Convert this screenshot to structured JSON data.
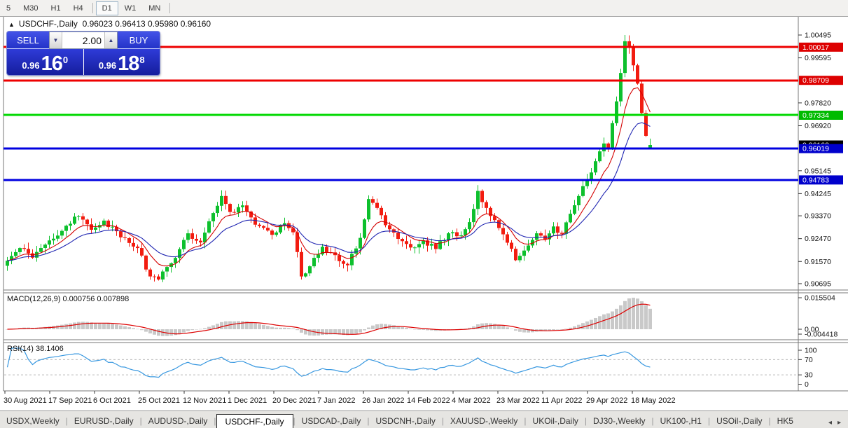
{
  "toolbar": {
    "timeframes": [
      {
        "label": "5"
      },
      {
        "label": "M30"
      },
      {
        "label": "H1"
      },
      {
        "label": "H4"
      },
      {
        "label": "D1"
      },
      {
        "label": "W1"
      },
      {
        "label": "MN"
      }
    ],
    "active_timeframe": "D1"
  },
  "chart_title": {
    "symbol": "USDCHF-,Daily",
    "ohlc": "0.96023 0.96413 0.95980 0.96160"
  },
  "trade_panel": {
    "sell_label": "SELL",
    "buy_label": "BUY",
    "lot_size": "2.00",
    "bid": {
      "small": "0.96",
      "big": "16",
      "sup": "0"
    },
    "ask": {
      "small": "0.96",
      "big": "18",
      "sup": "8"
    }
  },
  "macd_panel": {
    "label": "MACD(12,26,9) 0.000756 0.007898"
  },
  "rsi_panel": {
    "label": "RSI(14) 38.1406"
  },
  "chart_data": {
    "type": "candlestick",
    "symbol": "USDCHF-",
    "timeframe": "Daily",
    "price_anchors": [
      [
        0,
        0.916
      ],
      [
        3,
        0.921
      ],
      [
        6,
        0.9172
      ],
      [
        10,
        0.924
      ],
      [
        14,
        0.9298
      ],
      [
        17,
        0.9335
      ],
      [
        20,
        0.9282
      ],
      [
        23,
        0.9318
      ],
      [
        27,
        0.9252
      ],
      [
        31,
        0.921
      ],
      [
        34,
        0.9098
      ],
      [
        36,
        0.9086
      ],
      [
        39,
        0.915
      ],
      [
        43,
        0.9268
      ],
      [
        46,
        0.9232
      ],
      [
        49,
        0.9348
      ],
      [
        51,
        0.9415
      ],
      [
        53,
        0.9352
      ],
      [
        56,
        0.9378
      ],
      [
        59,
        0.9302
      ],
      [
        63,
        0.9262
      ],
      [
        66,
        0.9308
      ],
      [
        68,
        0.9272
      ],
      [
        70,
        0.9098
      ],
      [
        72,
        0.9138
      ],
      [
        75,
        0.9215
      ],
      [
        78,
        0.9182
      ],
      [
        81,
        0.9142
      ],
      [
        84,
        0.925
      ],
      [
        86,
        0.9403
      ],
      [
        88,
        0.9368
      ],
      [
        90,
        0.93
      ],
      [
        93,
        0.9246
      ],
      [
        96,
        0.9212
      ],
      [
        99,
        0.924
      ],
      [
        102,
        0.9206
      ],
      [
        105,
        0.9268
      ],
      [
        108,
        0.926
      ],
      [
        110,
        0.9312
      ],
      [
        112,
        0.9435
      ],
      [
        114,
        0.9368
      ],
      [
        116,
        0.932
      ],
      [
        118,
        0.9264
      ],
      [
        121,
        0.9162
      ],
      [
        123,
        0.92
      ],
      [
        126,
        0.9268
      ],
      [
        128,
        0.9244
      ],
      [
        130,
        0.9295
      ],
      [
        132,
        0.9266
      ],
      [
        134,
        0.9345
      ],
      [
        136,
        0.9415
      ],
      [
        138,
        0.9478
      ],
      [
        140,
        0.9552
      ],
      [
        142,
        0.9622
      ],
      [
        143,
        0.9604
      ],
      [
        144,
        0.9702
      ],
      [
        145,
        0.9788
      ],
      [
        146,
        0.99
      ],
      [
        147,
        1.0025
      ],
      [
        148,
        1.0
      ],
      [
        149,
        0.993
      ],
      [
        150,
        0.9858
      ],
      [
        151,
        0.9742
      ],
      [
        152,
        0.9652
      ],
      [
        153,
        0.9616
      ]
    ],
    "last_candle": [
      0.96023,
      0.96413,
      0.9598,
      0.9616
    ],
    "peak_high": 1.00495,
    "moving_averages": [
      {
        "period": 8,
        "color": "#d40000"
      },
      {
        "period": 17,
        "color": "#2026b2"
      }
    ],
    "levels": [
      {
        "price": 1.00017,
        "color": "#ee0000"
      },
      {
        "price": 0.98709,
        "color": "#ee0000"
      },
      {
        "price": 0.97334,
        "color": "#00d800"
      },
      {
        "price": 0.96019,
        "color": "#0000e0"
      },
      {
        "price": 0.94783,
        "color": "#0000e0"
      }
    ],
    "y_axis_ticks": [
      "1.00495",
      "0.99595",
      "0.97820",
      "0.96920",
      "0.95145",
      "0.94245",
      "0.93370",
      "0.92470",
      "0.91570",
      "0.90695"
    ],
    "price_label_boxes": [
      {
        "value": "1.00017",
        "color": "#dd0000"
      },
      {
        "value": "0.98709",
        "color": "#dd0000"
      },
      {
        "value": "0.97334",
        "color": "#00bb00"
      },
      {
        "value": "0.96160",
        "color": "#000000"
      },
      {
        "value": "0.96019",
        "color": "#0000cc"
      },
      {
        "value": "0.94783",
        "color": "#0000cc"
      }
    ],
    "x_labels": [
      "30 Aug 2021",
      "17 Sep 2021",
      "6 Oct 2021",
      "25 Oct 2021",
      "12 Nov 2021",
      "1 Dec 2021",
      "20 Dec 2021",
      "7 Jan 2022",
      "26 Jan 2022",
      "14 Feb 2022",
      "4 Mar 2022",
      "23 Mar 2022",
      "11 Apr 2022",
      "29 Apr 2022",
      "18 May 2022"
    ],
    "macd": {
      "params": [
        12,
        26,
        9
      ],
      "current_macd": 0.000756,
      "current_signal": 0.007898,
      "axis_ticks": [
        "0.015504",
        "0.00",
        "-0.004418"
      ],
      "histogram_color": "#c9c9c9",
      "signal_color": "#dd0000"
    },
    "rsi": {
      "period": 14,
      "current": 38.1406,
      "axis_ticks": [
        "100",
        "70",
        "30",
        "0"
      ],
      "dashed_levels": [
        70,
        30
      ],
      "line_color": "#3898e0"
    },
    "candle_up_color": "#0dc02d",
    "candle_down_color": "#f21c10"
  },
  "tabs": {
    "items": [
      "USDX,Weekly",
      "EURUSD-,Daily",
      "AUDUSD-,Daily",
      "USDCHF-,Daily",
      "USDCAD-,Daily",
      "USDCNH-,Daily",
      "XAUUSD-,Weekly",
      "UKOil-,Daily",
      "DJ30-,Weekly",
      "UK100-,H1",
      "USOil-,Daily",
      "HK5"
    ],
    "active": "USDCHF-,Daily",
    "scroll_left": "◂",
    "scroll_right": "▸"
  }
}
